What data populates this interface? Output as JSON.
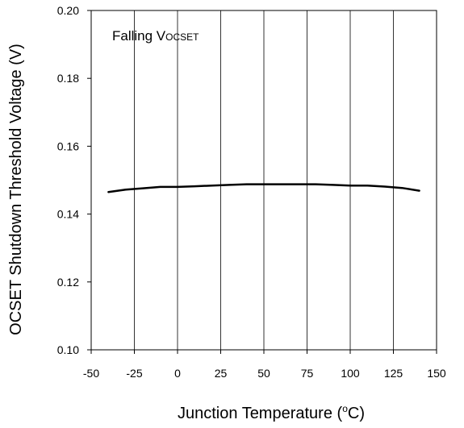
{
  "chart_data": {
    "type": "line",
    "title": "",
    "xlabel": "Junction Temperature (",
    "xlabel_sup": "o",
    "xlabel_end": "C)",
    "ylabel": "OCSET Shutdown Threshold Voltage (V)",
    "xlim": [
      -50,
      150
    ],
    "ylim": [
      0.1,
      0.2
    ],
    "x_ticks": [
      -50,
      -25,
      0,
      25,
      50,
      75,
      100,
      125,
      150
    ],
    "x_tick_labels": [
      "-50",
      "-25",
      "0",
      "25",
      "50",
      "75",
      "100",
      "125",
      "150"
    ],
    "y_ticks": [
      0.1,
      0.12,
      0.14,
      0.16,
      0.18,
      0.2
    ],
    "y_tick_labels": [
      "0.10",
      "0.12",
      "0.14",
      "0.16",
      "0.18",
      "0.20"
    ],
    "grid": true,
    "annotation": {
      "text_main": "Falling V",
      "text_sub": "OCSET"
    },
    "series": [
      {
        "x": [
          -40,
          -30,
          -20,
          -10,
          0,
          10,
          20,
          30,
          40,
          50,
          60,
          70,
          80,
          90,
          100,
          110,
          120,
          130,
          140
        ],
        "y": [
          0.1465,
          0.1472,
          0.1476,
          0.148,
          0.148,
          0.1482,
          0.1484,
          0.1486,
          0.1488,
          0.1488,
          0.1488,
          0.1488,
          0.1488,
          0.1486,
          0.1484,
          0.1484,
          0.1481,
          0.1477,
          0.1469
        ]
      }
    ],
    "line_color": "#000000"
  }
}
